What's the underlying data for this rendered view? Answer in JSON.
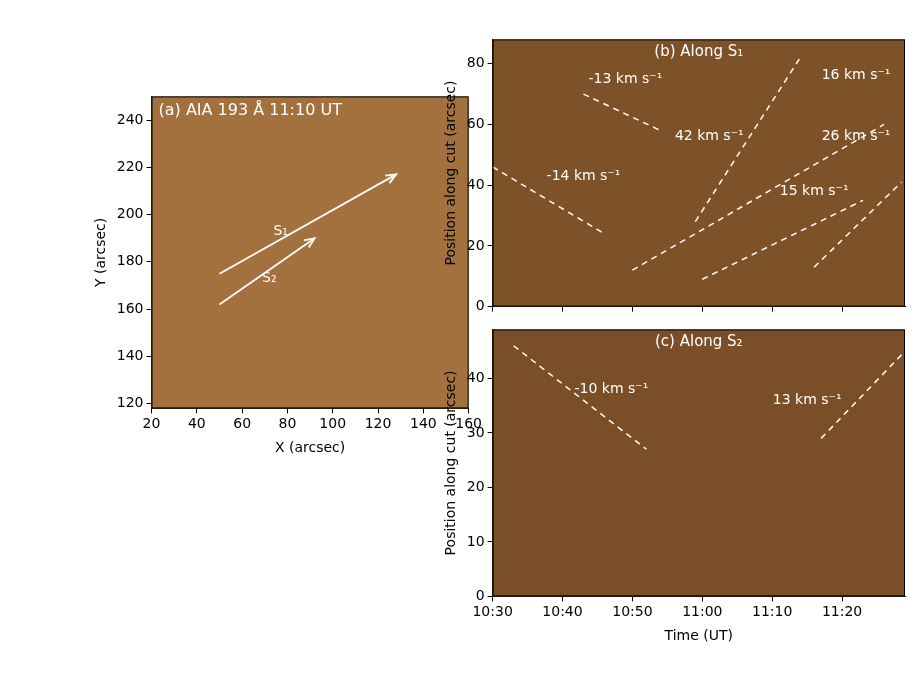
{
  "chart_data": [
    {
      "type": "scatter",
      "title": "(a) AIA 193 Å 11:10 UT",
      "x_label": "X (arcsec)",
      "y_label": "Y (arcsec)",
      "xlim": [
        20,
        160
      ],
      "xticks": [
        20,
        40,
        60,
        80,
        100,
        120,
        140,
        160
      ],
      "ylim": [
        118,
        250
      ],
      "yticks": [
        120,
        140,
        160,
        180,
        200,
        220,
        240
      ],
      "grid": false,
      "series": [
        {
          "color": "#ffffff",
          "line_style": "solid",
          "marker": "arrow",
          "x": [
            50,
            128
          ],
          "values": [
            175,
            217
          ]
        },
        {
          "color": "#ffffff",
          "line_style": "solid",
          "marker": "arrow",
          "x": [
            50,
            92
          ],
          "values": [
            162,
            190
          ]
        }
      ],
      "annotations": [
        {
          "text": "S₁",
          "x": 77,
          "y": 193
        },
        {
          "text": "S₂",
          "x": 72,
          "y": 173
        }
      ]
    },
    {
      "type": "scatter",
      "title": "(b) Along S₁",
      "y_label": "Position along cut (arcsec)",
      "xlim": [
        630,
        689
      ],
      "xticks": [
        {
          "value": 630,
          "label": "10:30"
        },
        {
          "value": 640,
          "label": "10:40"
        },
        {
          "value": 650,
          "label": "10:50"
        },
        {
          "value": 660,
          "label": "11:00"
        },
        {
          "value": 670,
          "label": "11:10"
        },
        {
          "value": 680,
          "label": "11:20"
        }
      ],
      "ylim": [
        0,
        88
      ],
      "yticks": [
        0,
        20,
        40,
        60,
        80
      ],
      "grid": false,
      "tick_labels": "y",
      "series": [
        {
          "color": "#ffffff",
          "line_style": "dashed",
          "x": [
            630,
            646
          ],
          "values": [
            46,
            24
          ]
        },
        {
          "color": "#ffffff",
          "line_style": "dashed",
          "x": [
            643,
            654
          ],
          "values": [
            70,
            58
          ]
        },
        {
          "color": "#ffffff",
          "line_style": "dashed",
          "x": [
            659,
            674
          ],
          "values": [
            28,
            82
          ]
        },
        {
          "color": "#ffffff",
          "line_style": "dashed",
          "x": [
            650,
            686
          ],
          "values": [
            12,
            60
          ]
        },
        {
          "color": "#ffffff",
          "line_style": "dashed",
          "x": [
            660,
            683
          ],
          "values": [
            9,
            35
          ]
        },
        {
          "color": "#ffffff",
          "line_style": "dashed",
          "x": [
            676,
            688.5
          ],
          "values": [
            13,
            41
          ]
        }
      ],
      "annotations": [
        {
          "text": "-14 km s⁻¹",
          "x": 643,
          "y": 43
        },
        {
          "text": "-13 km s⁻¹",
          "x": 649,
          "y": 75
        },
        {
          "text": "42 km s⁻¹",
          "x": 661,
          "y": 56
        },
        {
          "text": "16 km s⁻¹",
          "x": 682,
          "y": 76
        },
        {
          "text": "26 km s⁻¹",
          "x": 682,
          "y": 56
        },
        {
          "text": "15 km s⁻¹",
          "x": 676,
          "y": 38
        }
      ]
    },
    {
      "type": "scatter",
      "title": "(c) Along S₂",
      "x_label": "Time (UT)",
      "y_label": "Position along cut (arcsec)",
      "xlim": [
        630,
        689
      ],
      "xticks": [
        {
          "value": 630,
          "label": "10:30"
        },
        {
          "value": 640,
          "label": "10:40"
        },
        {
          "value": 650,
          "label": "10:50"
        },
        {
          "value": 660,
          "label": "11:00"
        },
        {
          "value": 670,
          "label": "11:10"
        },
        {
          "value": 680,
          "label": "11:20"
        }
      ],
      "ylim": [
        0,
        49
      ],
      "yticks": [
        0,
        10,
        20,
        30,
        40
      ],
      "grid": false,
      "series": [
        {
          "color": "#ffffff",
          "line_style": "dashed",
          "x": [
            633,
            652
          ],
          "values": [
            46,
            27
          ]
        },
        {
          "color": "#ffffff",
          "line_style": "dashed",
          "x": [
            677,
            689
          ],
          "values": [
            29,
            45
          ]
        }
      ],
      "annotations": [
        {
          "text": "-10 km s⁻¹",
          "x": 647,
          "y": 38
        },
        {
          "text": "13 km s⁻¹",
          "x": 675,
          "y": 36
        }
      ]
    }
  ]
}
